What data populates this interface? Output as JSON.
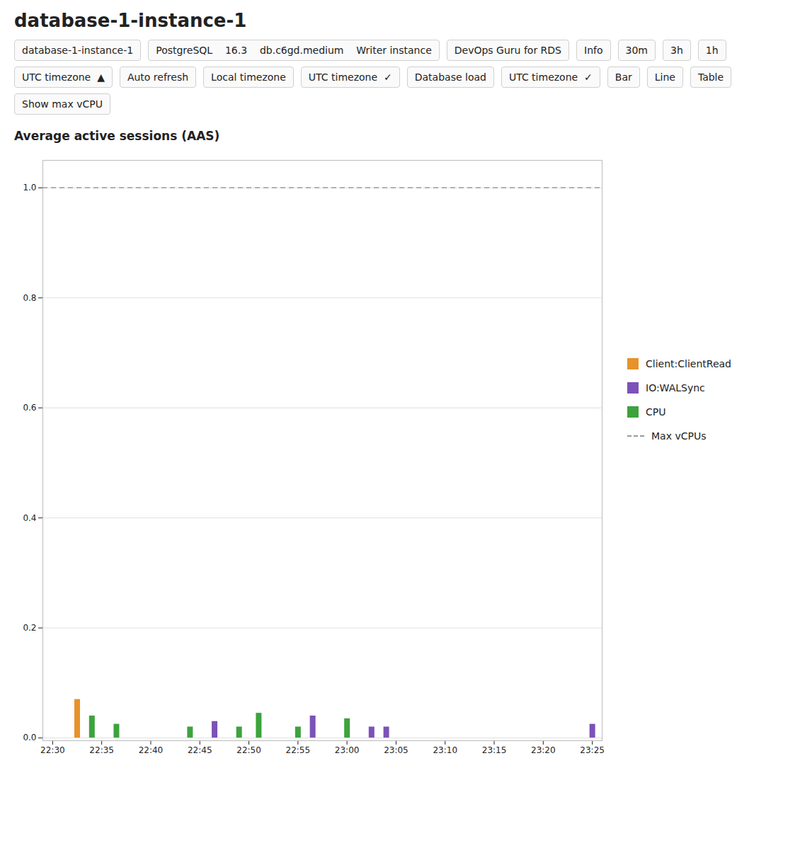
{
  "chart_data": {
    "type": "bar",
    "title": "Average active sessions (AAS)",
    "annotations": [
      "database-1-instance-1",
      "database-1-instance-1",
      "PostgreSQL    16.3    db.c6gd.medium    Writer instance",
      "DevOps Guru for RDS",
      "Info",
      "30m",
      "3h",
      "1h",
      "UTC timezone  ▲",
      "Auto refresh",
      "Local timezone",
      "UTC timezone  ✓",
      "Database load",
      "UTC timezone  ✓",
      "Bar",
      "Line",
      "Table",
      "Show max vCPU"
    ],
    "series": [
      {
        "name": "Client:ClientRead",
        "color": "#e8922a",
        "type": "bar",
        "x": [
          2.5
        ],
        "values": [
          0.07
        ]
      },
      {
        "name": "IO:WALSync",
        "color": "#7c52b8",
        "type": "bar",
        "x": [
          16.5,
          26.5,
          32.5,
          34,
          55
        ],
        "values": [
          0.03,
          0.04,
          0.02,
          0.02,
          0.025
        ]
      },
      {
        "name": "CPU",
        "color": "#3da33d",
        "type": "bar",
        "x": [
          4,
          6.5,
          14,
          19,
          21,
          25,
          30
        ],
        "values": [
          0.04,
          0.025,
          0.02,
          0.02,
          0.045,
          0.02,
          0.035
        ]
      },
      {
        "name": "Max vCPUs",
        "color": "#999999",
        "type": "rule",
        "line_style": "dashed",
        "values": [
          1
        ]
      }
    ],
    "xlim": [
      -1,
      56
    ],
    "xticks": [
      {
        "value": 0,
        "label": "22:30"
      },
      {
        "value": 5,
        "label": "22:35"
      },
      {
        "value": 10,
        "label": "22:40"
      },
      {
        "value": 15,
        "label": "22:45"
      },
      {
        "value": 20,
        "label": "22:50"
      },
      {
        "value": 25,
        "label": "22:55"
      },
      {
        "value": 30,
        "label": "23:00"
      },
      {
        "value": 35,
        "label": "23:05"
      },
      {
        "value": 40,
        "label": "23:10"
      },
      {
        "value": 45,
        "label": "23:15"
      },
      {
        "value": 50,
        "label": "23:20"
      },
      {
        "value": 55,
        "label": "23:25"
      }
    ],
    "ylim": [
      -0.005,
      1.05
    ],
    "yticks": [
      {
        "value": 0,
        "label": "0.0"
      },
      0.2,
      0.4,
      0.6,
      0.8,
      {
        "value": 1.0,
        "label": "1.0"
      }
    ],
    "grid": true,
    "legend": "right"
  }
}
